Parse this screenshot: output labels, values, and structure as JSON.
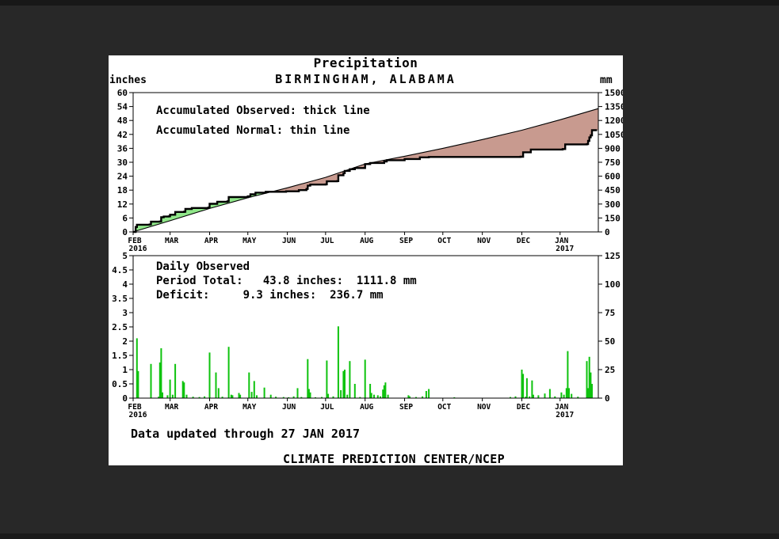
{
  "page": {
    "background": "#282828",
    "panel_background": "#ffffff",
    "ink": "#000000"
  },
  "header": {
    "title": "Precipitation",
    "subtitle": "BIRMINGHAM, ALABAMA",
    "left_unit": "inches",
    "right_unit": "mm"
  },
  "footer": {
    "updated": "Data updated through 27 JAN 2017",
    "source": "CLIMATE PREDICTION CENTER/NCEP"
  },
  "chart_data": [
    {
      "type": "area",
      "name": "accumulated-precipitation",
      "legend": [
        "Accumulated Observed: thick line",
        "Accumulated Normal: thin line"
      ],
      "x_axis": {
        "days": 365,
        "months": [
          {
            "label": "FEB",
            "sublabel": "2016",
            "day": 0
          },
          {
            "label": "MAR",
            "day": 29
          },
          {
            "label": "APR",
            "day": 60
          },
          {
            "label": "MAY",
            "day": 90
          },
          {
            "label": "JUN",
            "day": 121
          },
          {
            "label": "JUL",
            "day": 151
          },
          {
            "label": "AUG",
            "day": 182
          },
          {
            "label": "SEP",
            "day": 213
          },
          {
            "label": "OCT",
            "day": 243
          },
          {
            "label": "NOV",
            "day": 274
          },
          {
            "label": "DEC",
            "day": 305
          },
          {
            "label": "JAN",
            "sublabel": "2017",
            "day": 335
          }
        ]
      },
      "y_left": {
        "unit": "inches",
        "min": 0,
        "max": 60,
        "ticks": [
          0,
          6,
          12,
          18,
          24,
          30,
          36,
          42,
          48,
          54,
          60
        ]
      },
      "y_right": {
        "unit": "mm",
        "min": 0,
        "max": 1500,
        "ticks": [
          0,
          150,
          300,
          450,
          600,
          750,
          900,
          1050,
          1200,
          1350,
          1500
        ]
      },
      "fills": {
        "observed_above_normal": "#90e78a",
        "observed_below_normal": "#c89a8f"
      },
      "series": [
        {
          "name": "Accumulated Observed",
          "style": "thick-step",
          "color": "#000000",
          "points": [
            [
              0,
              0
            ],
            [
              2,
              2.1
            ],
            [
              3,
              3.1
            ],
            [
              13,
              3.2
            ],
            [
              14,
              4.4
            ],
            [
              21,
              4.5
            ],
            [
              22,
              6.3
            ],
            [
              24,
              6.6
            ],
            [
              28,
              6.7
            ],
            [
              29,
              7.4
            ],
            [
              33,
              8.6
            ],
            [
              40,
              8.7
            ],
            [
              41,
              9.9
            ],
            [
              46,
              10.3
            ],
            [
              59,
              10.5
            ],
            [
              60,
              12.1
            ],
            [
              66,
              13.0
            ],
            [
              74,
              13.2
            ],
            [
              75,
              15.0
            ],
            [
              90,
              15.3
            ],
            [
              92,
              16.2
            ],
            [
              96,
              16.9
            ],
            [
              104,
              17.3
            ],
            [
              120,
              17.5
            ],
            [
              130,
              18.0
            ],
            [
              136,
              18.5
            ],
            [
              137,
              19.9
            ],
            [
              139,
              20.4
            ],
            [
              151,
              20.5
            ],
            [
              152,
              21.8
            ],
            [
              160,
              21.9
            ],
            [
              161,
              24.4
            ],
            [
              165,
              25.3
            ],
            [
              166,
              26.3
            ],
            [
              170,
              27.0
            ],
            [
              174,
              27.5
            ],
            [
              182,
              29.2
            ],
            [
              186,
              29.7
            ],
            [
              197,
              30.3
            ],
            [
              199,
              30.9
            ],
            [
              213,
              31.4
            ],
            [
              225,
              32.1
            ],
            [
              232,
              32.3
            ],
            [
              304,
              32.4
            ],
            [
              306,
              34.3
            ],
            [
              312,
              35.5
            ],
            [
              337,
              35.7
            ],
            [
              339,
              37.7
            ],
            [
              356,
              37.8
            ],
            [
              357,
              39.2
            ],
            [
              358,
              40.7
            ],
            [
              359,
              41.6
            ],
            [
              360,
              43.8
            ],
            [
              364,
              43.8
            ]
          ]
        },
        {
          "name": "Accumulated Normal",
          "style": "thin-line",
          "color": "#000000",
          "points": [
            [
              0,
              0
            ],
            [
              29,
              4.8
            ],
            [
              60,
              10.1
            ],
            [
              90,
              14.7
            ],
            [
              121,
              19.0
            ],
            [
              151,
              23.5
            ],
            [
              182,
              29.3
            ],
            [
              213,
              32.6
            ],
            [
              243,
              36.0
            ],
            [
              274,
              39.8
            ],
            [
              305,
              43.8
            ],
            [
              335,
              48.3
            ],
            [
              365,
              53.1
            ]
          ]
        }
      ]
    },
    {
      "type": "bar",
      "name": "daily-observed-precipitation",
      "annotation": [
        "Daily Observed",
        "Period Total:   43.8 inches:  1111.8 mm",
        "Deficit:     9.3 inches:  236.7 mm"
      ],
      "period_total_inches": 43.8,
      "period_total_mm": 1111.8,
      "deficit_inches": 9.3,
      "deficit_mm": 236.7,
      "y_left": {
        "unit": "inches",
        "min": 0,
        "max": 5,
        "ticks": [
          0,
          0.5,
          1,
          1.5,
          2,
          2.5,
          3,
          3.5,
          4,
          4.5,
          5
        ]
      },
      "y_right": {
        "unit": "mm",
        "min": 0,
        "max": 125,
        "ticks": [
          0,
          25,
          50,
          75,
          100,
          125
        ]
      },
      "bar_color": "#0ec30e",
      "bars": [
        [
          3,
          2.1
        ],
        [
          4,
          0.95
        ],
        [
          14,
          1.2
        ],
        [
          20,
          0.05
        ],
        [
          21,
          1.25
        ],
        [
          22,
          1.75
        ],
        [
          23,
          0.2
        ],
        [
          27,
          0.1
        ],
        [
          29,
          0.65
        ],
        [
          31,
          0.12
        ],
        [
          33,
          1.2
        ],
        [
          39,
          0.6
        ],
        [
          40,
          0.55
        ],
        [
          42,
          0.12
        ],
        [
          47,
          0.05
        ],
        [
          52,
          0.04
        ],
        [
          56,
          0.06
        ],
        [
          60,
          1.6
        ],
        [
          65,
          0.9
        ],
        [
          67,
          0.35
        ],
        [
          70,
          0.05
        ],
        [
          75,
          1.8
        ],
        [
          77,
          0.12
        ],
        [
          78,
          0.1
        ],
        [
          83,
          0.18
        ],
        [
          84,
          0.12
        ],
        [
          91,
          0.9
        ],
        [
          93,
          0.22
        ],
        [
          95,
          0.6
        ],
        [
          97,
          0.1
        ],
        [
          103,
          0.37
        ],
        [
          108,
          0.12
        ],
        [
          112,
          0.05
        ],
        [
          118,
          0.04
        ],
        [
          122,
          0.03
        ],
        [
          126,
          0.06
        ],
        [
          129,
          0.35
        ],
        [
          132,
          0.04
        ],
        [
          137,
          1.37
        ],
        [
          138,
          0.32
        ],
        [
          139,
          0.2
        ],
        [
          143,
          0.03
        ],
        [
          148,
          0.04
        ],
        [
          152,
          1.32
        ],
        [
          153,
          0.15
        ],
        [
          157,
          0.06
        ],
        [
          161,
          2.52
        ],
        [
          163,
          0.28
        ],
        [
          165,
          0.95
        ],
        [
          166,
          1.0
        ],
        [
          168,
          0.12
        ],
        [
          170,
          1.3
        ],
        [
          174,
          0.5
        ],
        [
          178,
          0.04
        ],
        [
          182,
          1.35
        ],
        [
          186,
          0.5
        ],
        [
          187,
          0.18
        ],
        [
          189,
          0.12
        ],
        [
          192,
          0.1
        ],
        [
          194,
          0.06
        ],
        [
          196,
          0.3
        ],
        [
          197,
          0.45
        ],
        [
          198,
          0.55
        ],
        [
          200,
          0.12
        ],
        [
          216,
          0.1
        ],
        [
          217,
          0.06
        ],
        [
          222,
          0.04
        ],
        [
          227,
          0.06
        ],
        [
          230,
          0.25
        ],
        [
          232,
          0.32
        ],
        [
          252,
          0.03
        ],
        [
          296,
          0.04
        ],
        [
          300,
          0.06
        ],
        [
          305,
          1.0
        ],
        [
          306,
          0.85
        ],
        [
          308,
          0.05
        ],
        [
          309,
          0.7
        ],
        [
          311,
          0.06
        ],
        [
          313,
          0.62
        ],
        [
          314,
          0.12
        ],
        [
          318,
          0.1
        ],
        [
          323,
          0.16
        ],
        [
          327,
          0.32
        ],
        [
          331,
          0.06
        ],
        [
          336,
          0.2
        ],
        [
          338,
          0.12
        ],
        [
          340,
          0.35
        ],
        [
          341,
          1.65
        ],
        [
          342,
          0.35
        ],
        [
          344,
          0.15
        ],
        [
          349,
          0.05
        ],
        [
          356,
          1.3
        ],
        [
          357,
          0.35
        ],
        [
          358,
          1.45
        ],
        [
          359,
          0.9
        ],
        [
          360,
          0.5
        ]
      ]
    }
  ]
}
